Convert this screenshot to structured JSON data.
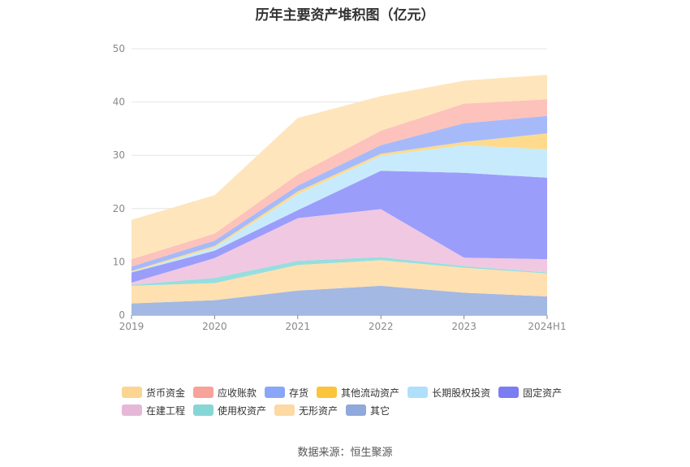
{
  "chart_data": {
    "type": "area",
    "stacked": true,
    "title": "历年主要资产堆积图（亿元）",
    "categories": [
      "2019",
      "2020",
      "2021",
      "2022",
      "2023",
      "2024H1"
    ],
    "ylim": [
      0,
      50
    ],
    "yticks": [
      0,
      10,
      20,
      30,
      40,
      50
    ],
    "grid": true,
    "legend_position": "bottom",
    "series": [
      {
        "name": "其它",
        "color": "#a3b8e3",
        "values": [
          2.2,
          2.8,
          4.6,
          5.5,
          4.2,
          3.5
        ]
      },
      {
        "name": "无形资产",
        "color": "#ffe0b0",
        "values": [
          3.3,
          3.2,
          4.8,
          4.8,
          4.7,
          4.3
        ]
      },
      {
        "name": "使用权资产",
        "color": "#97dede",
        "values": [
          0.2,
          1.0,
          0.8,
          0.6,
          0.3,
          0.2
        ]
      },
      {
        "name": "在建工程",
        "color": "#f0c8e2",
        "values": [
          0.4,
          3.7,
          8.0,
          9.0,
          1.6,
          2.5
        ]
      },
      {
        "name": "固定资产",
        "color": "#9b9dfb",
        "values": [
          1.9,
          1.4,
          1.5,
          7.2,
          15.9,
          15.3
        ]
      },
      {
        "name": "长期股权投资",
        "color": "#c7ebfd",
        "values": [
          0.1,
          0.6,
          3.0,
          2.8,
          5.2,
          5.3
        ]
      },
      {
        "name": "其他流动资产",
        "color": "#fedb8c",
        "values": [
          0.2,
          0.3,
          0.5,
          0.4,
          0.6,
          3.0
        ]
      },
      {
        "name": "存货",
        "color": "#a6bafa",
        "values": [
          0.8,
          1.0,
          1.1,
          1.6,
          3.5,
          3.3
        ]
      },
      {
        "name": "应收账款",
        "color": "#fcc2bb",
        "values": [
          1.4,
          1.3,
          2.1,
          2.7,
          3.7,
          3.1
        ]
      },
      {
        "name": "货币资金",
        "color": "#fee5bc",
        "values": [
          7.4,
          7.2,
          10.6,
          6.5,
          4.3,
          4.6
        ]
      }
    ],
    "legend_order": [
      "货币资金",
      "应收账款",
      "存货",
      "其他流动资产",
      "长期股权投资",
      "固定资产",
      "在建工程",
      "使用权资产",
      "无形资产",
      "其它"
    ],
    "legend_colors": {
      "货币资金": "#fdd592",
      "应收账款": "#f8a299",
      "存货": "#8aa6f8",
      "其他流动资产": "#fbc43b",
      "长期股权投资": "#aee0fb",
      "固定资产": "#7b7df2",
      "在建工程": "#e6b8d8",
      "使用权资产": "#87d6d6",
      "无形资产": "#fdd9a3",
      "其它": "#8fa9dc"
    }
  },
  "source": "数据来源：恒生聚源"
}
